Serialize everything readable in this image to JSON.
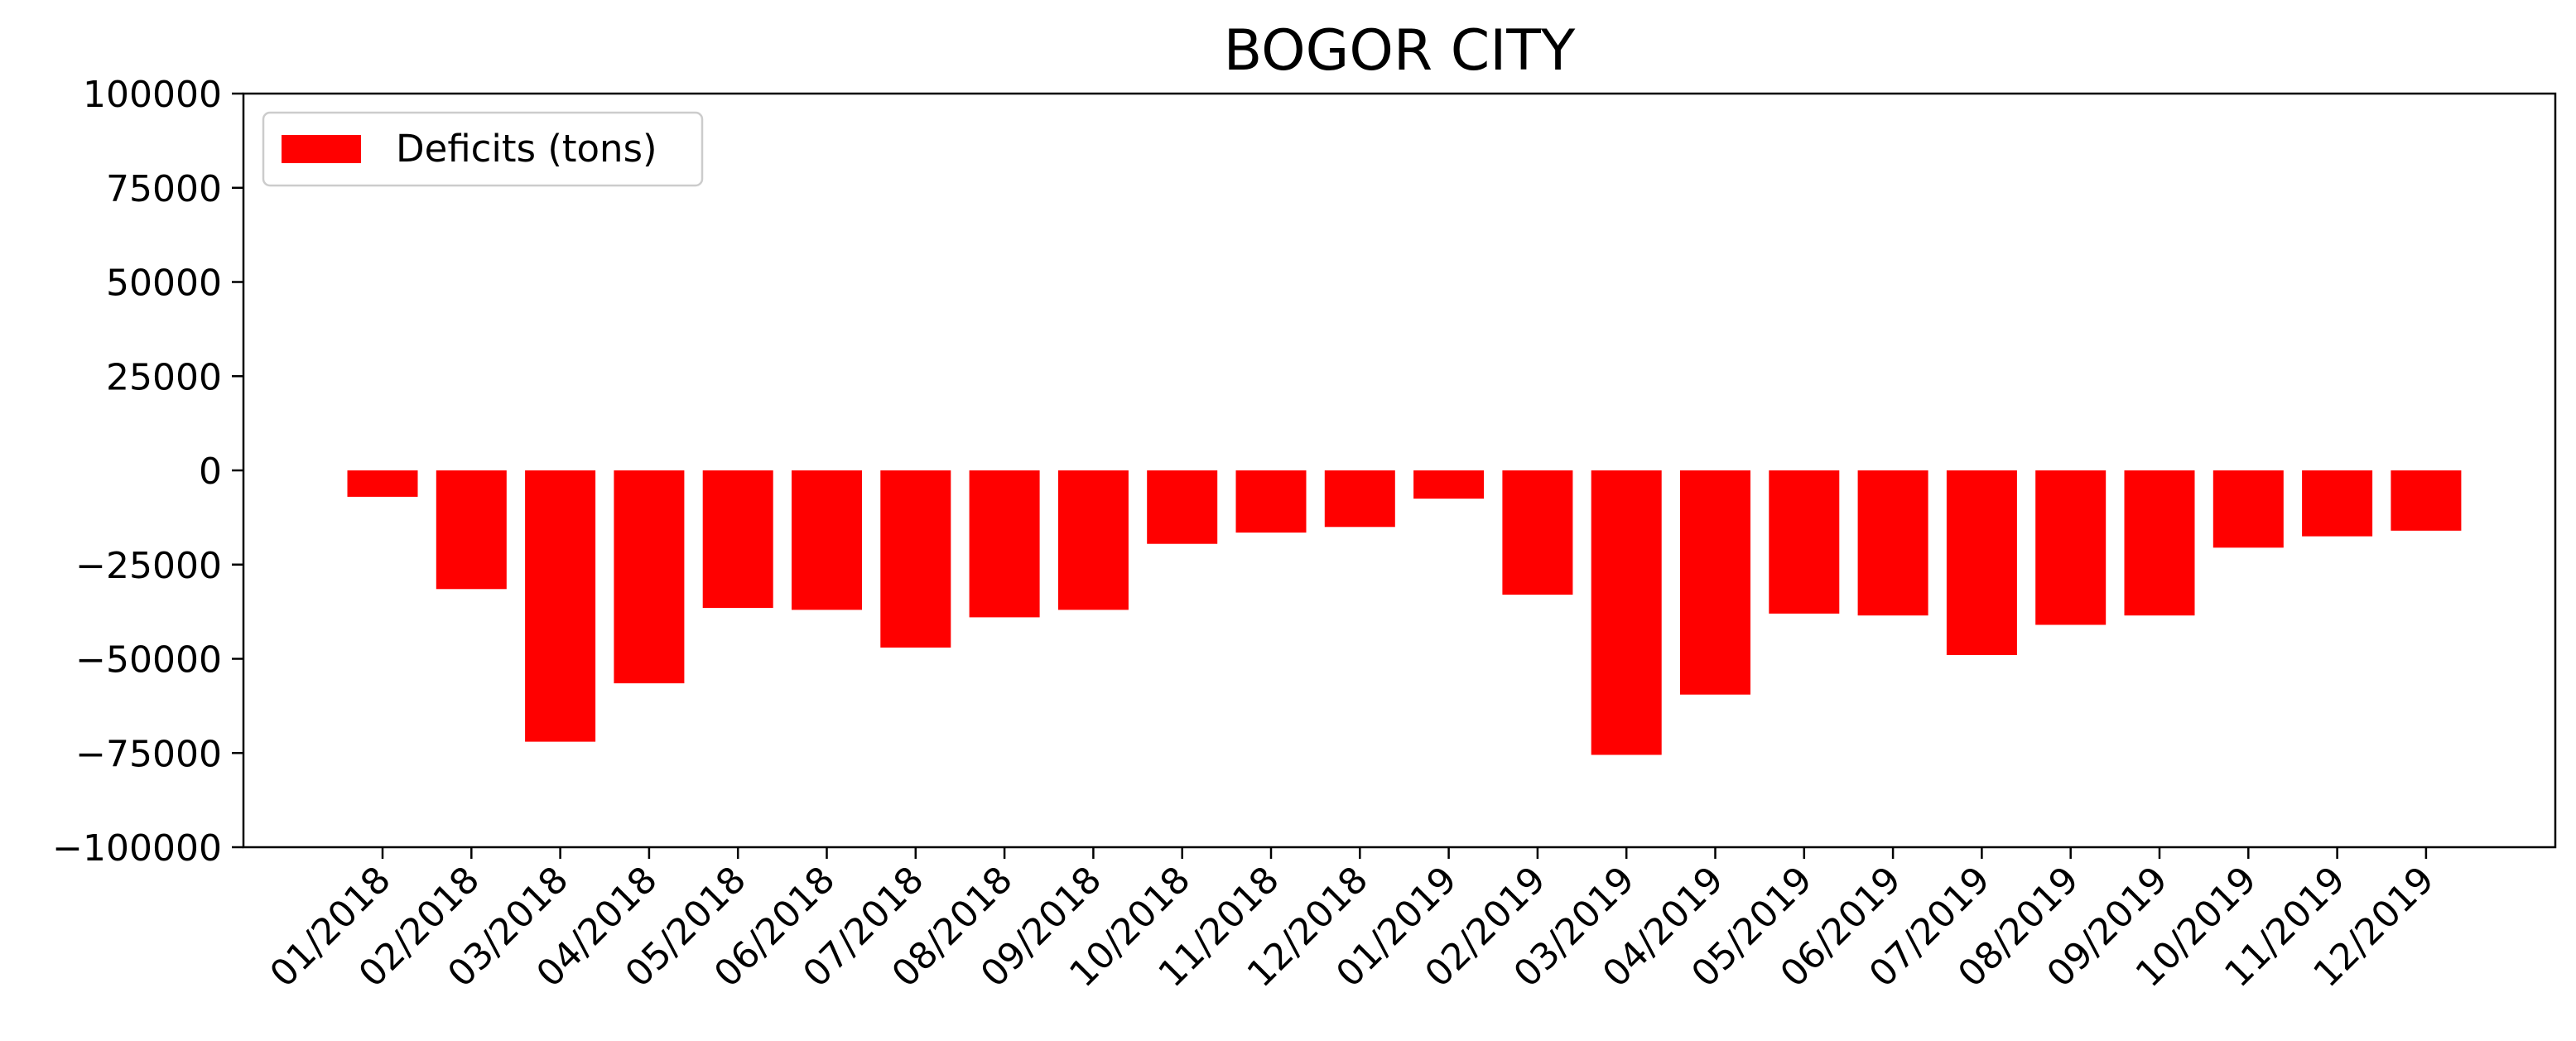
{
  "chart_data": {
    "type": "bar",
    "title": "BOGOR CITY",
    "xlabel": "",
    "ylabel": "",
    "categories": [
      "01/2018",
      "02/2018",
      "03/2018",
      "04/2018",
      "05/2018",
      "06/2018",
      "07/2018",
      "08/2018",
      "09/2018",
      "10/2018",
      "11/2018",
      "12/2018",
      "01/2019",
      "02/2019",
      "03/2019",
      "04/2019",
      "05/2019",
      "06/2019",
      "07/2019",
      "08/2019",
      "09/2019",
      "10/2019",
      "11/2019",
      "12/2019"
    ],
    "series": [
      {
        "name": "Deficits (tons)",
        "color": "#ff0000",
        "values": [
          -7000,
          -31500,
          -72000,
          -56500,
          -36500,
          -37000,
          -47000,
          -39000,
          -37000,
          -19500,
          -16500,
          -15000,
          -7500,
          -33000,
          -75500,
          -59500,
          -38000,
          -38500,
          -49000,
          -41000,
          -38500,
          -20500,
          -17500,
          -16000
        ]
      }
    ],
    "ylim": [
      -100000,
      100000
    ],
    "yticks": [
      100000,
      75000,
      50000,
      25000,
      0,
      -25000,
      -50000,
      -75000,
      -100000
    ],
    "ytick_labels": [
      "100000",
      "75000",
      "50000",
      "25000",
      "0",
      "−25000",
      "−50000",
      "−75000",
      "−100000"
    ],
    "grid": false,
    "legend": {
      "position": "top-left",
      "label": "Deficits (tons)"
    }
  }
}
